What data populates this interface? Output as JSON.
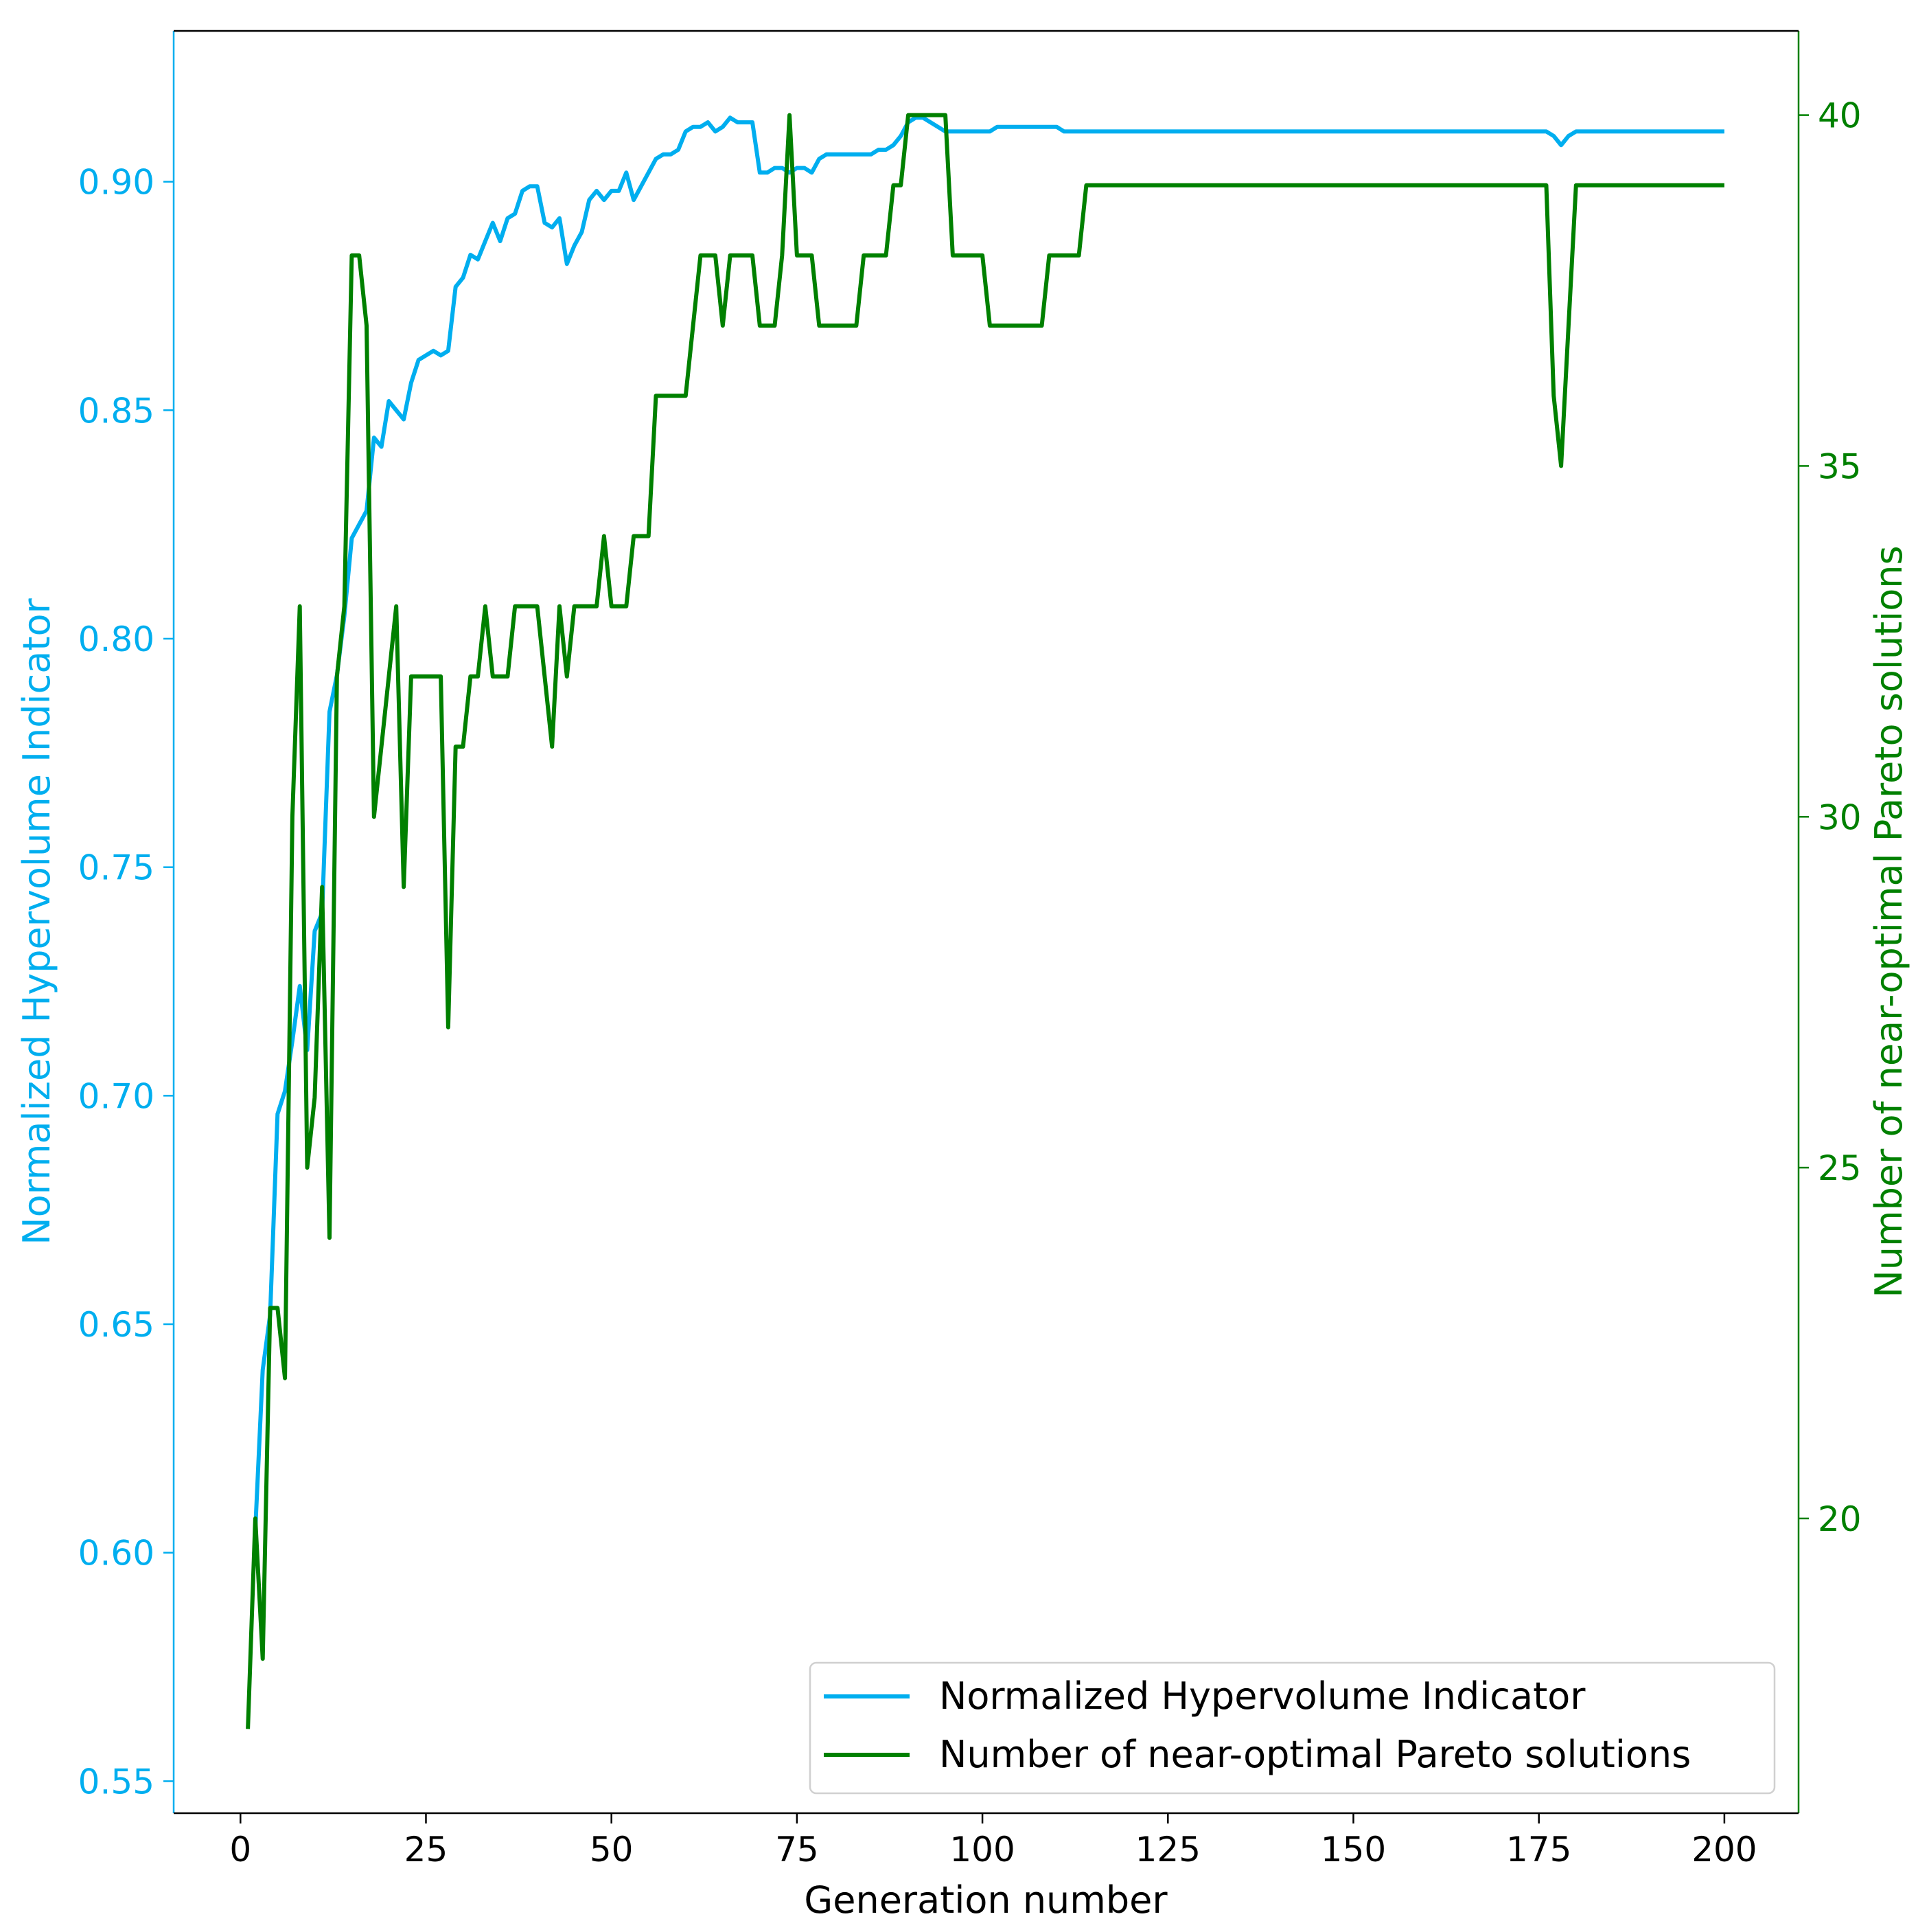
{
  "colors": {
    "left_axis": "#00AEEF",
    "right_axis": "#008000",
    "hv_line": "#00AEEF",
    "np_line": "#008000",
    "frame": "#000000",
    "legend_border": "#d0d0d0"
  },
  "chart_data": {
    "type": "line",
    "title": "",
    "xlabel": "Generation number",
    "ylabel_left": "Normalized Hypervolume Indicator",
    "ylabel_right": "Number of near-optimal Pareto solutions",
    "xlim": [
      -9,
      210
    ],
    "ylim_left": [
      0.543,
      0.933
    ],
    "ylim_right": [
      15.8,
      41.2
    ],
    "x_ticks": [
      0,
      25,
      50,
      75,
      100,
      125,
      150,
      175,
      200
    ],
    "x_tick_labels": [
      "0",
      "25",
      "50",
      "75",
      "100",
      "125",
      "150",
      "175",
      "200"
    ],
    "y_left_ticks": [
      0.55,
      0.6,
      0.65,
      0.7,
      0.75,
      0.8,
      0.85,
      0.9
    ],
    "y_left_tick_labels": [
      "0.55",
      "0.60",
      "0.65",
      "0.70",
      "0.75",
      "0.80",
      "0.85",
      "0.90"
    ],
    "y_right_ticks": [
      20,
      25,
      30,
      35,
      40
    ],
    "y_right_tick_labels": [
      "20",
      "25",
      "30",
      "35",
      "40"
    ],
    "grid": false,
    "legend_position": "bottom-right",
    "series": [
      {
        "name": "Normalized Hypervolume Indicator",
        "axis": "left",
        "x": [
          2,
          3,
          4,
          5,
          6,
          7,
          8,
          9,
          10,
          11,
          12,
          13,
          14,
          15,
          16,
          17,
          18,
          19,
          20,
          21,
          22,
          23,
          24,
          25,
          26,
          27,
          28,
          29,
          30,
          31,
          32,
          33,
          34,
          35,
          36,
          37,
          38,
          39,
          40,
          41,
          42,
          43,
          44,
          45,
          46,
          47,
          48,
          49,
          50,
          51,
          52,
          53,
          54,
          55,
          56,
          57,
          58,
          59,
          60,
          61,
          62,
          63,
          64,
          65,
          66,
          67,
          68,
          69,
          70,
          71,
          72,
          73,
          74,
          75,
          76,
          77,
          78,
          79,
          80,
          81,
          82,
          83,
          84,
          85,
          86,
          87,
          88,
          89,
          90,
          91,
          92,
          93,
          94,
          95,
          96,
          97,
          98,
          99,
          100,
          101,
          102,
          103,
          104,
          105,
          106,
          107,
          108,
          109,
          110,
          111,
          112,
          113,
          114,
          120,
          130,
          140,
          150,
          160,
          170,
          176,
          177,
          178,
          179,
          180,
          181,
          190,
          200
        ],
        "values": [
          0.605,
          0.64,
          0.652,
          0.696,
          0.701,
          0.712,
          0.724,
          0.71,
          0.736,
          0.74,
          0.784,
          0.792,
          0.805,
          0.822,
          0.825,
          0.828,
          0.844,
          0.842,
          0.852,
          0.85,
          0.848,
          0.856,
          0.861,
          0.862,
          0.863,
          0.862,
          0.863,
          0.877,
          0.879,
          0.884,
          0.883,
          0.887,
          0.891,
          0.887,
          0.892,
          0.893,
          0.898,
          0.899,
          0.899,
          0.891,
          0.89,
          0.892,
          0.882,
          0.886,
          0.889,
          0.896,
          0.898,
          0.896,
          0.898,
          0.898,
          0.902,
          0.896,
          0.899,
          0.902,
          0.905,
          0.906,
          0.906,
          0.907,
          0.911,
          0.912,
          0.912,
          0.913,
          0.911,
          0.912,
          0.914,
          0.913,
          0.913,
          0.913,
          0.902,
          0.902,
          0.903,
          0.903,
          0.902,
          0.903,
          0.903,
          0.902,
          0.905,
          0.906,
          0.906,
          0.906,
          0.906,
          0.906,
          0.906,
          0.906,
          0.907,
          0.907,
          0.908,
          0.91,
          0.913,
          0.914,
          0.914,
          0.913,
          0.912,
          0.911,
          0.911,
          0.911,
          0.911,
          0.911,
          0.911,
          0.911,
          0.912,
          0.912,
          0.912,
          0.912,
          0.912,
          0.912,
          0.912,
          0.912,
          0.912,
          0.911,
          0.911,
          0.911,
          0.911,
          0.911,
          0.911,
          0.911,
          0.911,
          0.911,
          0.911,
          0.911,
          0.91,
          0.908,
          0.91,
          0.911,
          0.911,
          0.911,
          0.911
        ]
      },
      {
        "name": "Number of near-optimal Pareto solutions",
        "axis": "right",
        "x": [
          1,
          2,
          3,
          4,
          5,
          6,
          7,
          8,
          9,
          10,
          11,
          12,
          13,
          14,
          15,
          16,
          17,
          18,
          19,
          20,
          21,
          22,
          23,
          24,
          25,
          26,
          27,
          28,
          29,
          30,
          31,
          32,
          33,
          34,
          35,
          36,
          37,
          38,
          39,
          40,
          41,
          42,
          43,
          44,
          45,
          46,
          47,
          48,
          49,
          50,
          51,
          52,
          53,
          54,
          55,
          56,
          57,
          58,
          59,
          60,
          61,
          62,
          63,
          64,
          65,
          66,
          67,
          68,
          69,
          70,
          71,
          72,
          73,
          74,
          75,
          76,
          77,
          78,
          79,
          80,
          81,
          82,
          83,
          84,
          85,
          86,
          87,
          88,
          89,
          90,
          91,
          92,
          93,
          94,
          95,
          96,
          97,
          98,
          99,
          100,
          101,
          102,
          103,
          104,
          105,
          106,
          107,
          108,
          109,
          110,
          111,
          112,
          113,
          114,
          120,
          130,
          140,
          150,
          160,
          170,
          176,
          177,
          178,
          179,
          180,
          181,
          190,
          200
        ],
        "values": [
          17,
          20,
          18,
          23,
          23,
          22,
          30,
          33,
          25,
          26,
          29,
          24,
          32,
          33,
          38,
          38,
          37,
          30,
          31,
          32,
          33,
          29,
          32,
          32,
          32,
          32,
          32,
          27,
          31,
          31,
          32,
          32,
          33,
          32,
          32,
          32,
          33,
          33,
          33,
          33,
          32,
          31,
          33,
          32,
          33,
          33,
          33,
          33,
          34,
          33,
          33,
          33,
          34,
          34,
          34,
          36,
          36,
          36,
          36,
          36,
          37,
          38,
          38,
          38,
          37,
          38,
          38,
          38,
          38,
          37,
          37,
          37,
          38,
          40,
          38,
          38,
          38,
          37,
          37,
          37,
          37,
          37,
          37,
          38,
          38,
          38,
          38,
          39,
          39,
          40,
          40,
          40,
          40,
          40,
          40,
          38,
          38,
          38,
          38,
          38,
          37,
          37,
          37,
          37,
          37,
          37,
          37,
          37,
          38,
          38,
          38,
          38,
          38,
          39,
          39,
          39,
          39,
          39,
          39,
          39,
          39,
          36,
          35,
          37,
          39,
          39,
          39,
          39
        ]
      }
    ]
  }
}
